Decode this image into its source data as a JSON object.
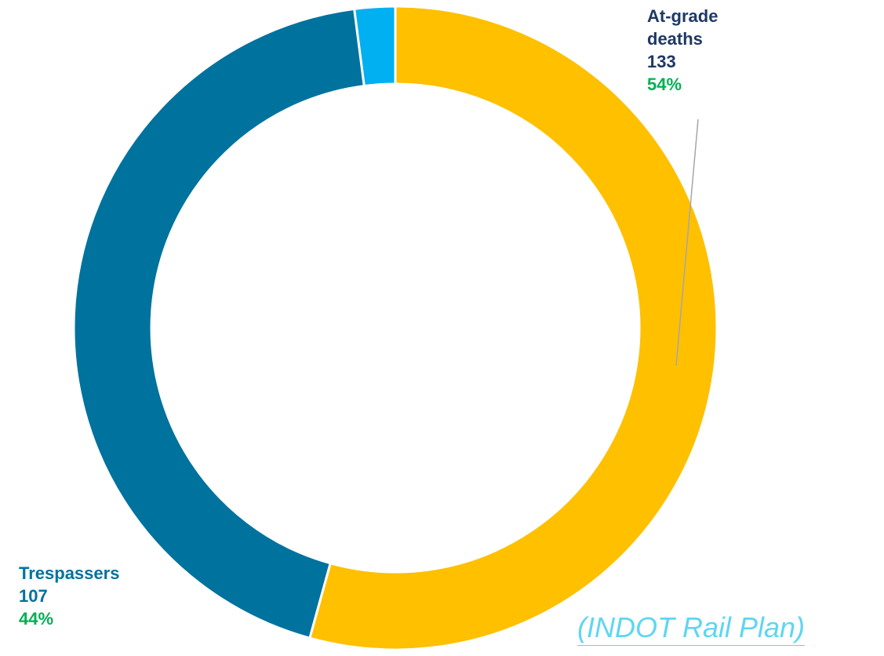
{
  "chart_data": {
    "type": "donut",
    "categories": [
      "At-grade deaths",
      "Trespassers",
      null
    ],
    "values": [
      133,
      107,
      5
    ],
    "percents": [
      54,
      44,
      2
    ],
    "percent_labels": [
      "54%",
      "44%",
      null
    ],
    "colors": [
      "#FFC000",
      "#00729E",
      "#00B0F0"
    ],
    "label_colors": [
      "#1F3864",
      "#00729E",
      null
    ],
    "source": "(INDOT Rail Plan)"
  }
}
